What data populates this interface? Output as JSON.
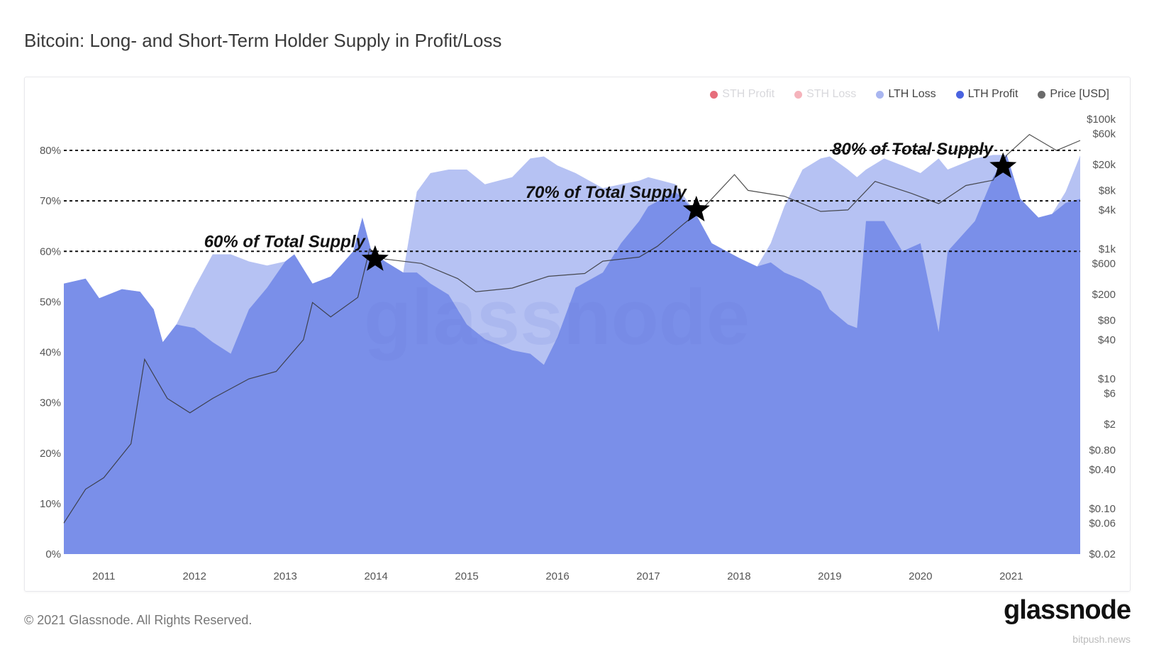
{
  "title": "Bitcoin: Long- and Short-Term Holder Supply in Profit/Loss",
  "footer": "© 2021 Glassnode. All Rights Reserved.",
  "logo": "glassnode",
  "watermark": "glassnode",
  "source_watermark": "bitpush.news",
  "legend": [
    {
      "label": "STH Profit",
      "color": "#e0485a",
      "faded": true
    },
    {
      "label": "STH Loss",
      "color": "#f2a0aa",
      "faded": true
    },
    {
      "label": "LTH Loss",
      "color": "#a9b6f0",
      "faded": false
    },
    {
      "label": "LTH Profit",
      "color": "#4a63e0",
      "faded": false
    },
    {
      "label": "Price [USD]",
      "color": "#6b6b6b",
      "faded": false
    }
  ],
  "colors": {
    "lth_profit_fill": "#7a8fe9",
    "lth_loss_fill": "#b6c2f3",
    "price_line": "#333333"
  },
  "chart_data": {
    "type": "area",
    "x_range": [
      2010.56,
      2021.76
    ],
    "x_ticks": [
      "2011",
      "2012",
      "2013",
      "2014",
      "2015",
      "2016",
      "2017",
      "2018",
      "2019",
      "2020",
      "2021"
    ],
    "y_left": {
      "ylim": [
        0,
        100
      ],
      "ticks": [
        "0%",
        "10%",
        "20%",
        "30%",
        "40%",
        "50%",
        "60%",
        "70%",
        "80%"
      ]
    },
    "y_right": {
      "scale": "log",
      "ylim": [
        0.02,
        100000
      ],
      "ticks": [
        {
          "label": "$100k",
          "v": 100000
        },
        {
          "label": "$60k",
          "v": 60000
        },
        {
          "label": "$20k",
          "v": 20000
        },
        {
          "label": "$8k",
          "v": 8000
        },
        {
          "label": "$4k",
          "v": 4000
        },
        {
          "label": "$1k",
          "v": 1000
        },
        {
          "label": "$600",
          "v": 600
        },
        {
          "label": "$200",
          "v": 200
        },
        {
          "label": "$80",
          "v": 80
        },
        {
          "label": "$40",
          "v": 40
        },
        {
          "label": "$10",
          "v": 10
        },
        {
          "label": "$6",
          "v": 6
        },
        {
          "label": "$2",
          "v": 2
        },
        {
          "label": "$0.80",
          "v": 0.8
        },
        {
          "label": "$0.40",
          "v": 0.4
        },
        {
          "label": "$0.10",
          "v": 0.1
        },
        {
          "label": "$0.06",
          "v": 0.06
        },
        {
          "label": "$0.02",
          "v": 0.02
        }
      ]
    },
    "series": [
      {
        "name": "LTH Profit",
        "axis": "left",
        "points": [
          [
            2010.56,
            53.6
          ],
          [
            2010.8,
            54.6
          ],
          [
            2010.95,
            50.7
          ],
          [
            2011.2,
            52.5
          ],
          [
            2011.4,
            52
          ],
          [
            2011.55,
            48.5
          ],
          [
            2011.65,
            42
          ],
          [
            2011.8,
            45.5
          ],
          [
            2012.0,
            44.8
          ],
          [
            2012.2,
            42
          ],
          [
            2012.4,
            39.7
          ],
          [
            2012.6,
            48.5
          ],
          [
            2012.8,
            52.8
          ],
          [
            2013.0,
            58
          ],
          [
            2013.1,
            59.4
          ],
          [
            2013.3,
            53.6
          ],
          [
            2013.5,
            55
          ],
          [
            2013.75,
            60
          ],
          [
            2013.85,
            66.7
          ],
          [
            2013.95,
            60
          ],
          [
            2014.1,
            58
          ],
          [
            2014.3,
            55.8
          ],
          [
            2014.45,
            55.8
          ],
          [
            2014.6,
            53.6
          ],
          [
            2014.8,
            51.4
          ],
          [
            2015.0,
            45.5
          ],
          [
            2015.2,
            42.6
          ],
          [
            2015.5,
            40.4
          ],
          [
            2015.7,
            39.7
          ],
          [
            2015.85,
            37.5
          ],
          [
            2016.0,
            43
          ],
          [
            2016.2,
            52.8
          ],
          [
            2016.5,
            55.8
          ],
          [
            2016.7,
            61.6
          ],
          [
            2016.9,
            66
          ],
          [
            2017.0,
            68.9
          ],
          [
            2017.3,
            71.8
          ],
          [
            2017.5,
            68.2
          ],
          [
            2017.7,
            61.6
          ],
          [
            2018.0,
            58.7
          ],
          [
            2018.2,
            57
          ],
          [
            2018.35,
            57.8
          ],
          [
            2018.5,
            55.8
          ],
          [
            2018.7,
            54.3
          ],
          [
            2018.9,
            52.1
          ],
          [
            2019.0,
            48.5
          ],
          [
            2019.2,
            45.5
          ],
          [
            2019.3,
            44.8
          ],
          [
            2019.4,
            66
          ],
          [
            2019.6,
            66
          ],
          [
            2019.8,
            60
          ],
          [
            2020.0,
            61.6
          ],
          [
            2020.2,
            44
          ],
          [
            2020.3,
            60
          ],
          [
            2020.6,
            66
          ],
          [
            2020.8,
            74.7
          ],
          [
            2020.95,
            79.1
          ],
          [
            2021.1,
            70.4
          ],
          [
            2021.3,
            66.7
          ],
          [
            2021.45,
            67.4
          ],
          [
            2021.6,
            69.6
          ],
          [
            2021.76,
            70.4
          ]
        ]
      },
      {
        "name": "LTH Loss",
        "axis": "left",
        "note_stack": "top of stacked area (profit + loss)",
        "points": [
          [
            2010.56,
            53.6
          ],
          [
            2010.8,
            54.6
          ],
          [
            2010.95,
            50.7
          ],
          [
            2011.2,
            52.5
          ],
          [
            2011.4,
            52
          ],
          [
            2011.55,
            48.5
          ],
          [
            2011.65,
            42
          ],
          [
            2011.8,
            45.5
          ],
          [
            2012.0,
            52.8
          ],
          [
            2012.2,
            59.4
          ],
          [
            2012.4,
            59.4
          ],
          [
            2012.6,
            58
          ],
          [
            2012.8,
            57.2
          ],
          [
            2013.0,
            58
          ],
          [
            2013.1,
            59.4
          ],
          [
            2013.3,
            53.6
          ],
          [
            2013.5,
            55
          ],
          [
            2013.75,
            60
          ],
          [
            2013.85,
            66.7
          ],
          [
            2013.95,
            60
          ],
          [
            2014.1,
            58
          ],
          [
            2014.3,
            55.8
          ],
          [
            2014.45,
            71.8
          ],
          [
            2014.6,
            75.5
          ],
          [
            2014.8,
            76.2
          ],
          [
            2015.0,
            76.2
          ],
          [
            2015.2,
            73.3
          ],
          [
            2015.5,
            74.7
          ],
          [
            2015.7,
            78.4
          ],
          [
            2015.85,
            78.8
          ],
          [
            2016.0,
            77
          ],
          [
            2016.2,
            75.5
          ],
          [
            2016.5,
            72.5
          ],
          [
            2016.7,
            73.3
          ],
          [
            2016.9,
            74
          ],
          [
            2017.0,
            74.7
          ],
          [
            2017.3,
            73.3
          ],
          [
            2017.5,
            68.2
          ],
          [
            2017.7,
            61.6
          ],
          [
            2018.0,
            58.7
          ],
          [
            2018.2,
            57
          ],
          [
            2018.35,
            61.6
          ],
          [
            2018.5,
            68.9
          ],
          [
            2018.7,
            76.2
          ],
          [
            2018.9,
            78.4
          ],
          [
            2019.0,
            78.8
          ],
          [
            2019.2,
            76.2
          ],
          [
            2019.3,
            74.7
          ],
          [
            2019.4,
            76.2
          ],
          [
            2019.6,
            78.4
          ],
          [
            2019.8,
            77
          ],
          [
            2020.0,
            75.5
          ],
          [
            2020.2,
            78.4
          ],
          [
            2020.3,
            76.2
          ],
          [
            2020.6,
            78.4
          ],
          [
            2020.8,
            79.1
          ],
          [
            2020.95,
            79.1
          ],
          [
            2021.1,
            70.4
          ],
          [
            2021.3,
            66.7
          ],
          [
            2021.45,
            67.4
          ],
          [
            2021.6,
            71.8
          ],
          [
            2021.76,
            79
          ]
        ]
      },
      {
        "name": "Price [USD]",
        "axis": "right",
        "points": [
          [
            2010.56,
            0.06
          ],
          [
            2010.8,
            0.2
          ],
          [
            2011.0,
            0.3
          ],
          [
            2011.3,
            1
          ],
          [
            2011.45,
            20
          ],
          [
            2011.7,
            5
          ],
          [
            2011.95,
            3
          ],
          [
            2012.2,
            5
          ],
          [
            2012.6,
            10
          ],
          [
            2012.9,
            13
          ],
          [
            2013.2,
            40
          ],
          [
            2013.3,
            150
          ],
          [
            2013.5,
            90
          ],
          [
            2013.8,
            180
          ],
          [
            2013.93,
            1000
          ],
          [
            2014.1,
            700
          ],
          [
            2014.5,
            600
          ],
          [
            2014.9,
            350
          ],
          [
            2015.1,
            220
          ],
          [
            2015.5,
            250
          ],
          [
            2015.9,
            380
          ],
          [
            2016.3,
            420
          ],
          [
            2016.5,
            650
          ],
          [
            2016.9,
            750
          ],
          [
            2017.1,
            1100
          ],
          [
            2017.4,
            2500
          ],
          [
            2017.6,
            4200
          ],
          [
            2017.95,
            14000
          ],
          [
            2018.1,
            8000
          ],
          [
            2018.5,
            6500
          ],
          [
            2018.9,
            3800
          ],
          [
            2019.2,
            4000
          ],
          [
            2019.5,
            11000
          ],
          [
            2019.9,
            7200
          ],
          [
            2020.2,
            5000
          ],
          [
            2020.5,
            9500
          ],
          [
            2020.8,
            11500
          ],
          [
            2020.95,
            28000
          ],
          [
            2021.2,
            58000
          ],
          [
            2021.5,
            33000
          ],
          [
            2021.76,
            47000
          ]
        ]
      }
    ],
    "reference_lines": [
      {
        "y": 80
      },
      {
        "y": 70
      },
      {
        "y": 60
      }
    ],
    "annotations": [
      {
        "text": "60% of Total Supply",
        "x": 2013.99,
        "y": 58.4,
        "marker": "star"
      },
      {
        "text": "70% of Total Supply",
        "x": 2017.53,
        "y": 68.2,
        "marker": "star"
      },
      {
        "text": "80% of Total Supply",
        "x": 2020.91,
        "y": 76.8,
        "marker": "star"
      }
    ],
    "legend_position": "top-right",
    "grid": false
  }
}
